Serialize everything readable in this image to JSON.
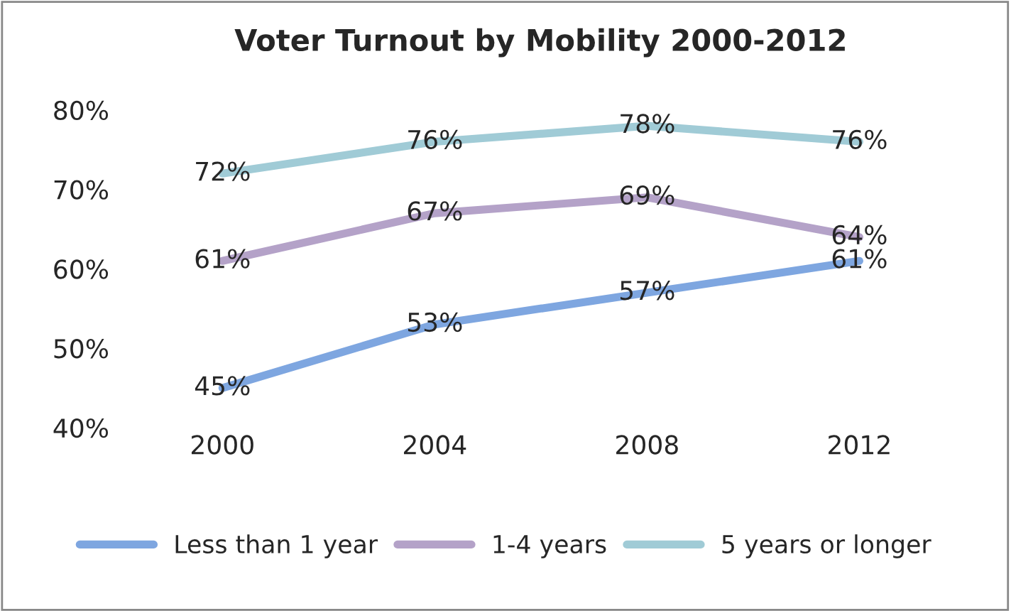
{
  "chart_data": {
    "type": "line",
    "title": "Voter Turnout by Mobility 2000-2012",
    "categories": [
      "2000",
      "2004",
      "2008",
      "2012"
    ],
    "series": [
      {
        "name": "Less than 1 year",
        "color": "#7ea6e0",
        "values": [
          45,
          53,
          57,
          61
        ],
        "value_labels": [
          "45%",
          "53%",
          "57%",
          "61%"
        ]
      },
      {
        "name": "1-4 years",
        "color": "#b4a2c8",
        "values": [
          61,
          67,
          69,
          64
        ],
        "value_labels": [
          "61%",
          "67%",
          "69%",
          "64%"
        ]
      },
      {
        "name": "5 years or longer",
        "color": "#a0cbd6",
        "values": [
          72,
          76,
          78,
          76
        ],
        "value_labels": [
          "72%",
          "76%",
          "78%",
          "76%"
        ]
      }
    ],
    "ylim": [
      40,
      80
    ],
    "yticks": [
      {
        "value": 40,
        "label": "40%"
      },
      {
        "value": 50,
        "label": "50%"
      },
      {
        "value": 60,
        "label": "60%"
      },
      {
        "value": 70,
        "label": "70%"
      },
      {
        "value": 80,
        "label": "80%"
      }
    ],
    "grid": false,
    "legend": "bottom",
    "marker": "none",
    "line_style": "solid"
  }
}
